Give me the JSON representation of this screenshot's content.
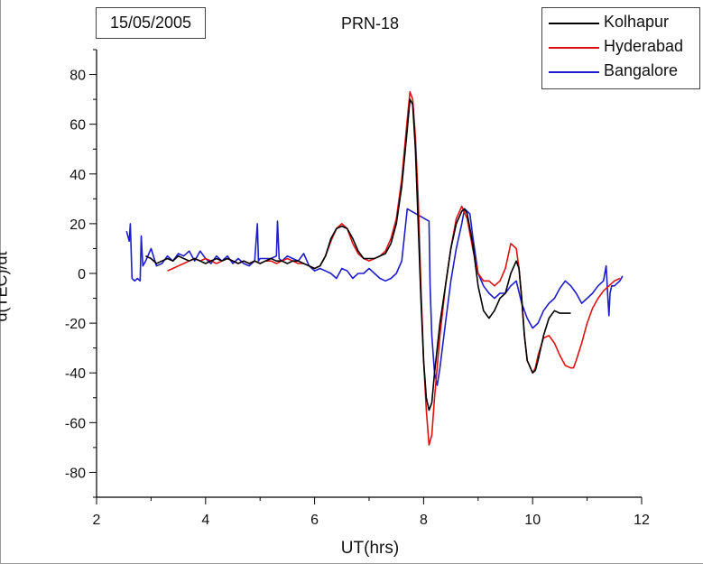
{
  "chart_data": {
    "type": "line",
    "title": "PRN-18",
    "date_label": "15/05/2005",
    "xlabel": "UT(hrs)",
    "ylabel": "d(TEC)/dt",
    "xlim": [
      2,
      12
    ],
    "ylim": [
      -90,
      90
    ],
    "x_ticks": [
      "2",
      "4",
      "6",
      "8",
      "10",
      "12"
    ],
    "y_ticks": [
      "80",
      "60",
      "40",
      "20",
      "0",
      "-20",
      "-40",
      "-60",
      "-80"
    ],
    "legend_position": "top-right",
    "series": [
      {
        "name": "Kolhapur",
        "color": "#000000",
        "x": [
          2.9,
          3.0,
          3.1,
          3.2,
          3.3,
          3.4,
          3.5,
          3.6,
          3.7,
          3.8,
          3.9,
          4.0,
          4.1,
          4.2,
          4.3,
          4.4,
          4.5,
          4.6,
          4.7,
          4.8,
          4.9,
          5.0,
          5.1,
          5.2,
          5.3,
          5.4,
          5.5,
          5.6,
          5.7,
          5.8,
          5.9,
          6.0,
          6.1,
          6.2,
          6.3,
          6.4,
          6.5,
          6.6,
          6.7,
          6.8,
          6.9,
          7.0,
          7.1,
          7.2,
          7.3,
          7.4,
          7.5,
          7.6,
          7.7,
          7.75,
          7.8,
          7.85,
          7.9,
          7.95,
          8.0,
          8.05,
          8.1,
          8.15,
          8.2,
          8.3,
          8.4,
          8.5,
          8.6,
          8.7,
          8.75,
          8.8,
          8.9,
          9.0,
          9.1,
          9.2,
          9.3,
          9.4,
          9.5,
          9.6,
          9.7,
          9.75,
          9.8,
          9.85,
          9.9,
          10.0,
          10.05,
          10.1,
          10.2,
          10.3,
          10.4,
          10.5,
          10.6,
          10.7
        ],
        "y": [
          7,
          6,
          4,
          5,
          6,
          5,
          7,
          6,
          5,
          6,
          5,
          4,
          5,
          6,
          5,
          6,
          5,
          4,
          5,
          4,
          5,
          4,
          5,
          6,
          5,
          5,
          4,
          5,
          5,
          4,
          3,
          2,
          3,
          7,
          14,
          18,
          19,
          18,
          14,
          9,
          6,
          6,
          6,
          7,
          8,
          12,
          20,
          35,
          58,
          70,
          68,
          50,
          20,
          -10,
          -35,
          -50,
          -55,
          -52,
          -40,
          -20,
          -5,
          10,
          20,
          25,
          26,
          24,
          12,
          -5,
          -15,
          -18,
          -15,
          -10,
          -8,
          0,
          5,
          2,
          -10,
          -25,
          -35,
          -40,
          -39,
          -35,
          -25,
          -18,
          -15,
          -16,
          -16,
          -16
        ]
      },
      {
        "name": "Hyderabad",
        "color": "#e01010",
        "x": [
          3.3,
          3.4,
          3.5,
          3.6,
          3.7,
          3.8,
          3.9,
          4.0,
          4.1,
          4.2,
          4.3,
          4.4,
          4.5,
          4.6,
          4.7,
          4.8,
          4.9,
          5.0,
          5.1,
          5.2,
          5.3,
          5.4,
          5.5,
          5.6,
          5.7,
          5.8,
          5.9,
          6.0,
          6.1,
          6.2,
          6.3,
          6.4,
          6.5,
          6.6,
          6.7,
          6.8,
          6.9,
          7.0,
          7.1,
          7.2,
          7.3,
          7.4,
          7.5,
          7.6,
          7.7,
          7.75,
          7.8,
          7.85,
          7.9,
          7.95,
          8.0,
          8.05,
          8.1,
          8.15,
          8.2,
          8.3,
          8.4,
          8.5,
          8.6,
          8.7,
          8.8,
          8.9,
          9.0,
          9.1,
          9.2,
          9.3,
          9.4,
          9.5,
          9.6,
          9.7,
          9.75,
          9.8,
          9.85,
          9.9,
          10.0,
          10.05,
          10.1,
          10.2,
          10.3,
          10.4,
          10.5,
          10.6,
          10.7,
          10.75,
          10.8,
          10.9,
          11.0,
          11.1,
          11.2,
          11.3,
          11.4,
          11.5,
          11.6
        ],
        "y": [
          1,
          2,
          3,
          4,
          5,
          6,
          5,
          6,
          5,
          4,
          5,
          6,
          5,
          4,
          5,
          4,
          5,
          4,
          5,
          5,
          4,
          5,
          6,
          5,
          4,
          4,
          3,
          2,
          3,
          7,
          13,
          18,
          20,
          18,
          12,
          8,
          6,
          5,
          6,
          7,
          9,
          14,
          22,
          38,
          62,
          73,
          70,
          55,
          30,
          -5,
          -35,
          -55,
          -69,
          -65,
          -50,
          -25,
          -5,
          10,
          22,
          27,
          22,
          10,
          0,
          -3,
          -3,
          -5,
          -3,
          2,
          12,
          10,
          2,
          -10,
          -25,
          -35,
          -40,
          -38,
          -33,
          -26,
          -25,
          -28,
          -33,
          -37,
          -38,
          -38,
          -35,
          -28,
          -20,
          -14,
          -10,
          -7,
          -5,
          -3,
          -2
        ]
      },
      {
        "name": "Bangalore",
        "color": "#1d1dcc",
        "x": [
          2.55,
          2.6,
          2.62,
          2.65,
          2.7,
          2.75,
          2.8,
          2.82,
          2.85,
          2.9,
          3.0,
          3.1,
          3.2,
          3.3,
          3.4,
          3.5,
          3.6,
          3.7,
          3.8,
          3.9,
          4.0,
          4.1,
          4.2,
          4.3,
          4.4,
          4.5,
          4.6,
          4.7,
          4.8,
          4.9,
          4.95,
          4.97,
          5.0,
          5.1,
          5.2,
          5.3,
          5.32,
          5.35,
          5.4,
          5.5,
          5.6,
          5.7,
          5.8,
          5.9,
          6.0,
          6.1,
          6.2,
          6.3,
          6.4,
          6.5,
          6.6,
          6.7,
          6.8,
          6.9,
          7.0,
          7.1,
          7.2,
          7.3,
          7.4,
          7.5,
          7.6,
          7.7,
          8.1,
          8.12,
          8.15,
          8.2,
          8.25,
          8.3,
          8.4,
          8.5,
          8.6,
          8.7,
          8.75,
          8.8,
          8.85,
          8.9,
          9.0,
          9.1,
          9.2,
          9.3,
          9.4,
          9.5,
          9.6,
          9.7,
          9.8,
          9.9,
          10.0,
          10.1,
          10.2,
          10.3,
          10.4,
          10.5,
          10.6,
          10.7,
          10.8,
          10.9,
          11.0,
          11.1,
          11.2,
          11.3,
          11.35,
          11.38,
          11.4,
          11.42,
          11.45,
          11.5,
          11.6,
          11.65
        ],
        "y": [
          17,
          13,
          20,
          -2,
          -3,
          -2,
          -3,
          15,
          3,
          5,
          10,
          3,
          4,
          7,
          5,
          8,
          7,
          9,
          5,
          9,
          6,
          4,
          7,
          5,
          7,
          4,
          6,
          4,
          3,
          5,
          20,
          5,
          6,
          6,
          6,
          7,
          21,
          6,
          5,
          7,
          6,
          5,
          8,
          3,
          1,
          2,
          1,
          0,
          -2,
          2,
          1,
          -2,
          0,
          0,
          2,
          0,
          -2,
          -3,
          -2,
          0,
          5,
          26,
          21,
          -5,
          -25,
          -40,
          -45,
          -38,
          -20,
          -3,
          10,
          20,
          26,
          25,
          24,
          15,
          0,
          -5,
          -8,
          -10,
          -8,
          -8,
          -5,
          -3,
          -12,
          -18,
          -22,
          -20,
          -15,
          -12,
          -10,
          -6,
          -3,
          -5,
          -8,
          -12,
          -10,
          -8,
          -5,
          -3,
          3,
          -10,
          -17,
          -8,
          -5,
          -5,
          -3,
          -1
        ]
      }
    ]
  }
}
